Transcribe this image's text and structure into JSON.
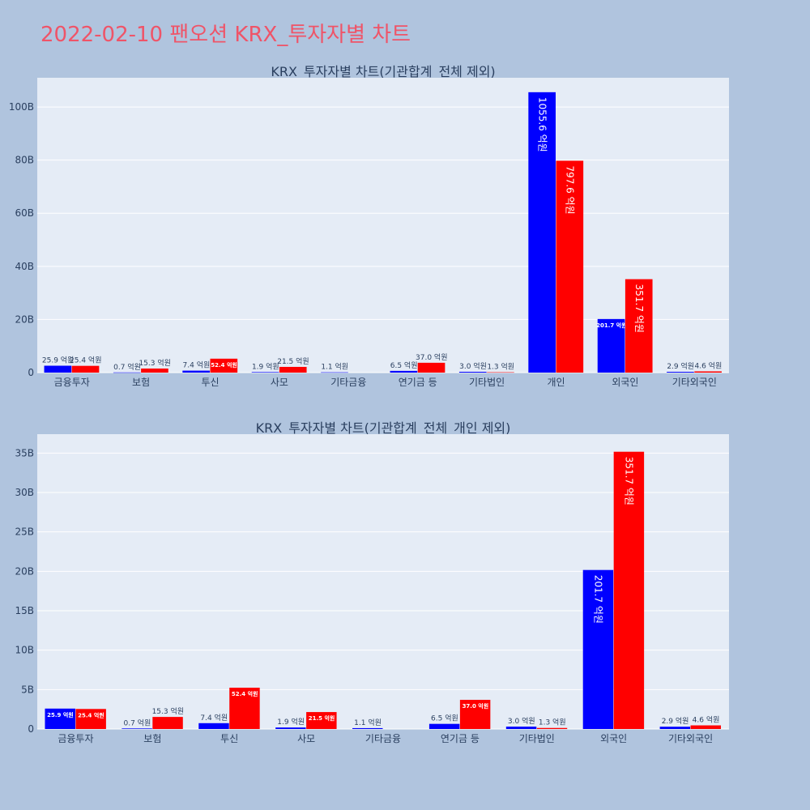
{
  "page_title": "2022-02-10 팬오션 KRX_투자자별 차트",
  "colors": {
    "buy": "#0000ff",
    "sell": "#ff0000",
    "plot_bg": "#e5ecf6",
    "page_bg": "#b0c4de",
    "title": "#ef5468",
    "text": "#2a3f5f"
  },
  "chart_data": [
    {
      "type": "bar",
      "title": "KRX_투자자별 차트(기관합계_전체 제외)",
      "categories": [
        "금융투자",
        "보험",
        "투신",
        "사모",
        "기타금융",
        "연기금 등",
        "기타법인",
        "개인",
        "외국인",
        "기타외국인"
      ],
      "series": [
        {
          "color": "#0000ff",
          "values": [
            2.59,
            0.07,
            0.74,
            0.19,
            0.11,
            0.65,
            0.3,
            105.56,
            20.17,
            0.29
          ],
          "labels": [
            "25.9 억원",
            "0.7 억원",
            "7.4 억원",
            "1.9 억원",
            "1.1 억원",
            "6.5 억원",
            "3.0 억원",
            "1055.6 억원",
            "201.7 억원",
            "2.9 억원"
          ]
        },
        {
          "color": "#ff0000",
          "values": [
            2.54,
            1.53,
            5.24,
            2.15,
            0,
            3.7,
            0.13,
            79.76,
            35.17,
            0.46
          ],
          "labels": [
            "25.4 억원",
            "15.3 억원",
            "52.4 억원",
            "21.5 억원",
            "",
            "37.0 억원",
            "1.3 억원",
            "797.6 억원",
            "351.7 억원",
            "4.6 억원"
          ]
        }
      ],
      "ylim": [
        0,
        111
      ],
      "yticks": [
        0,
        20,
        40,
        60,
        80,
        100
      ],
      "ytick_labels": [
        "0",
        "20B",
        "40B",
        "60B",
        "80B",
        "100B"
      ],
      "grid": true
    },
    {
      "type": "bar",
      "title": "KRX_투자자별 차트(기관합계_전체_개인 제외)",
      "categories": [
        "금융투자",
        "보험",
        "투신",
        "사모",
        "기타금융",
        "연기금 등",
        "기타법인",
        "외국인",
        "기타외국인"
      ],
      "series": [
        {
          "color": "#0000ff",
          "values": [
            2.59,
            0.07,
            0.74,
            0.19,
            0.11,
            0.65,
            0.3,
            20.17,
            0.29
          ],
          "labels": [
            "25.9 억원",
            "0.7 억원",
            "7.4 억원",
            "1.9 억원",
            "1.1 억원",
            "6.5 억원",
            "3.0 억원",
            "201.7 억원",
            "2.9 억원"
          ]
        },
        {
          "color": "#ff0000",
          "values": [
            2.54,
            1.53,
            5.24,
            2.15,
            0,
            3.7,
            0.13,
            35.17,
            0.46
          ],
          "labels": [
            "25.4 억원",
            "15.3 억원",
            "52.4 억원",
            "21.5 억원",
            "",
            "37.0 억원",
            "1.3 억원",
            "351.7 억원",
            "4.6 억원"
          ]
        }
      ],
      "ylim": [
        0,
        37.4
      ],
      "yticks": [
        0,
        5,
        10,
        15,
        20,
        25,
        30,
        35
      ],
      "ytick_labels": [
        "0",
        "5B",
        "10B",
        "15B",
        "20B",
        "25B",
        "30B",
        "35B"
      ],
      "grid": true
    }
  ]
}
